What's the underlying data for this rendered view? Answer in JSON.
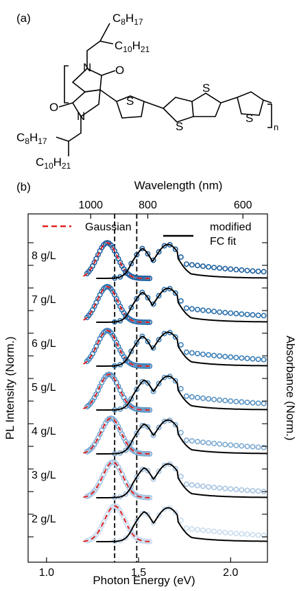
{
  "panel_a": {
    "label": "(a)",
    "chem": {
      "c8": "C",
      "c8_sub": "8",
      "c8_h": "H",
      "c8_h_sub": "17",
      "c10": "C",
      "c10_sub": "10",
      "c10_h": "H",
      "c10_h_sub": "21",
      "oxygen": "O",
      "nitrogen": "N",
      "sulfur": "S",
      "repeat": "n"
    }
  },
  "panel_b": {
    "label": "(b)"
  },
  "chart_data": {
    "type": "line",
    "xlabel": "Photon Energy (eV)",
    "x_ticks": [
      "1.0",
      "1.5",
      "2.0"
    ],
    "xlim": [
      0.9,
      2.2
    ],
    "top_axis_label": "Wavelength (nm)",
    "top_ticks": [
      "1000",
      "800",
      "600"
    ],
    "top_tick_values_nm": [
      1000,
      800,
      600
    ],
    "ylabel_left": "PL Intensity (Norm.)",
    "ylabel_right": "Absorbance (Norm.)",
    "legend": {
      "gaussian": "Gaussian",
      "fc_line1": "modified",
      "fc_line2": "FC fit"
    },
    "vlines": [
      1.37,
      1.49
    ],
    "colors": {
      "gaussian": "#e02020",
      "fc_fit": "#000000",
      "vline": "#000000"
    },
    "traces": [
      {
        "label": "8 g/L",
        "color": "#1d5f9e",
        "pl_peak": 1.33,
        "abs_peak": 1.49,
        "shoulder": 1.66
      },
      {
        "label": "7 g/L",
        "color": "#2a6fac",
        "pl_peak": 1.33,
        "abs_peak": 1.49,
        "shoulder": 1.66
      },
      {
        "label": "6 g/L",
        "color": "#3a7fb8",
        "pl_peak": 1.33,
        "abs_peak": 1.49,
        "shoulder": 1.66
      },
      {
        "label": "5 g/L",
        "color": "#5a93c4",
        "pl_peak": 1.34,
        "abs_peak": 1.5,
        "shoulder": 1.66
      },
      {
        "label": "4 g/L",
        "color": "#7eaad2",
        "pl_peak": 1.35,
        "abs_peak": 1.5,
        "shoulder": 1.66
      },
      {
        "label": "3 g/L",
        "color": "#a7c5e2",
        "pl_peak": 1.36,
        "abs_peak": 1.5,
        "shoulder": 1.66
      },
      {
        "label": "2 g/L",
        "color": "#c9dcef",
        "pl_peak": 1.37,
        "abs_peak": 1.5,
        "shoulder": 1.66
      }
    ]
  }
}
